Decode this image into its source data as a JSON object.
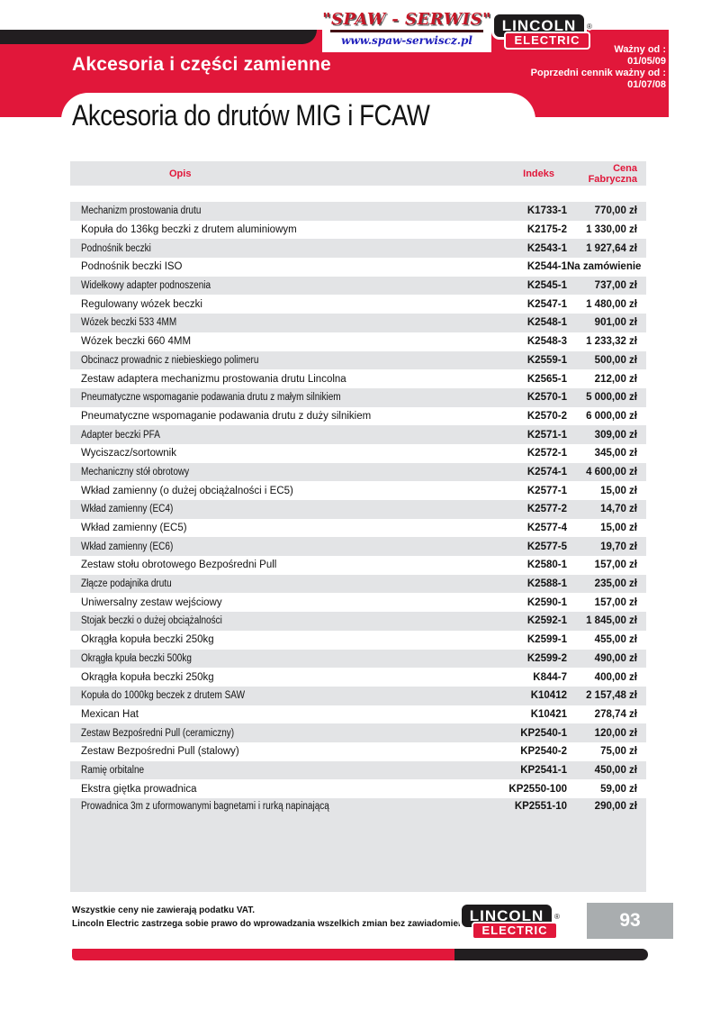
{
  "header": {
    "section_title": "Akcesoria i części zamienne",
    "validity": {
      "line1": "Ważny od :",
      "line2": "01/05/09",
      "line3": "Poprzedni cennik ważny od :",
      "line4": "01/07/08"
    }
  },
  "logos": {
    "spaw": {
      "title": "\"SPAW - SERWIS\"",
      "url": "www.spaw-serwiscz.pl"
    },
    "lincoln": {
      "line1": "LINCOLN",
      "line2": "ELECTRIC",
      "registered": "®"
    }
  },
  "page_title": "Akcesoria do drutów MIG i FCAW",
  "table": {
    "columns": {
      "desc": "Opis",
      "index": "Indeks",
      "price": "Cena Fabryczna"
    },
    "rows": [
      {
        "desc": "Mechanizm prostowania drutu",
        "index": "K1733-1",
        "price": "770,00 zł"
      },
      {
        "desc": "Kopuła do 136kg beczki z drutem aluminiowym",
        "index": "K2175-2",
        "price": "1 330,00 zł"
      },
      {
        "desc": "Podnośnik beczki",
        "index": "K2543-1",
        "price": "1 927,64 zł"
      },
      {
        "desc": "Podnośnik beczki ISO",
        "index": "K2544-1",
        "price": "Na zamówienie"
      },
      {
        "desc": "Widełkowy adapter podnoszenia",
        "index": "K2545-1",
        "price": "737,00 zł"
      },
      {
        "desc": "Regulowany wózek beczki",
        "index": "K2547-1",
        "price": "1 480,00 zł"
      },
      {
        "desc": "Wózek beczki 533 4MM",
        "index": "K2548-1",
        "price": "901,00 zł"
      },
      {
        "desc": "Wózek beczki 660 4MM",
        "index": "K2548-3",
        "price": "1 233,32 zł"
      },
      {
        "desc": "Obcinacz prowadnic z niebieskiego polimeru",
        "index": "K2559-1",
        "price": "500,00 zł"
      },
      {
        "desc": "Zestaw adaptera mechanizmu prostowania drutu Lincolna",
        "index": "K2565-1",
        "price": "212,00 zł"
      },
      {
        "desc": "Pneumatyczne wspomaganie podawania drutu z małym silnikiem",
        "index": "K2570-1",
        "price": "5 000,00 zł"
      },
      {
        "desc": "Pneumatyczne wspomaganie podawania drutu z duży silnikiem",
        "index": "K2570-2",
        "price": "6 000,00 zł"
      },
      {
        "desc": "Adapter beczki PFA",
        "index": "K2571-1",
        "price": "309,00 zł"
      },
      {
        "desc": "Wyciszacz/sortownik",
        "index": "K2572-1",
        "price": "345,00 zł"
      },
      {
        "desc": "Mechaniczny stół obrotowy",
        "index": "K2574-1",
        "price": "4 600,00 zł"
      },
      {
        "desc": "Wkład zamienny (o dużej obciążalności i EC5)",
        "index": "K2577-1",
        "price": "15,00 zł"
      },
      {
        "desc": "Wkład zamienny (EC4)",
        "index": "K2577-2",
        "price": "14,70 zł"
      },
      {
        "desc": "Wkład zamienny (EC5)",
        "index": "K2577-4",
        "price": "15,00 zł"
      },
      {
        "desc": "Wkład zamienny (EC6)",
        "index": "K2577-5",
        "price": "19,70 zł"
      },
      {
        "desc": "Zestaw stołu obrotowego Bezpośredni Pull",
        "index": "K2580-1",
        "price": "157,00 zł"
      },
      {
        "desc": "Złącze podajnika drutu",
        "index": "K2588-1",
        "price": "235,00 zł"
      },
      {
        "desc": "Uniwersalny zestaw wejściowy",
        "index": "K2590-1",
        "price": "157,00 zł"
      },
      {
        "desc": "Stojak beczki o dużej obciążalności",
        "index": "K2592-1",
        "price": "1 845,00 zł"
      },
      {
        "desc": "Okrągła kopuła beczki 250kg",
        "index": "K2599-1",
        "price": "455,00 zł"
      },
      {
        "desc": "Okrągła kpuła beczki 500kg",
        "index": "K2599-2",
        "price": "490,00 zł"
      },
      {
        "desc": "Okrągła kopuła beczki 250kg",
        "index": "K844-7",
        "price": "400,00 zł"
      },
      {
        "desc": "Kopuła do 1000kg beczek z drutem SAW",
        "index": "K10412",
        "price": "2 157,48 zł"
      },
      {
        "desc": "Mexican Hat",
        "index": "K10421",
        "price": "278,74 zł"
      },
      {
        "desc": "Zestaw Bezpośredni Pull (ceramiczny)",
        "index": "KP2540-1",
        "price": "120,00 zł"
      },
      {
        "desc": "Zestaw Bezpośredni Pull (stalowy)",
        "index": "KP2540-2",
        "price": "75,00 zł"
      },
      {
        "desc": "Ramię orbitalne",
        "index": "KP2541-1",
        "price": "450,00 zł"
      },
      {
        "desc": "Ekstra giętka prowadnica",
        "index": "KP2550-100",
        "price": "59,00 zł"
      },
      {
        "desc": "Prowadnica 3m z uformowanymi bagnetami i rurką napinającą",
        "index": "KP2551-10",
        "price": "290,00 zł"
      }
    ]
  },
  "footer": {
    "note1": "Wszystkie ceny nie zawierają podatku VAT.",
    "note2": "Lincoln Electric zastrzega sobie prawo do wprowadzania wszelkich zmian bez zawiadomienia.",
    "page_number": "93"
  },
  "colors": {
    "accent_red": "#e1173a",
    "bar_black": "#221e20",
    "row_gray": "#e3e4e6",
    "pagebox_gray": "#a9adaf",
    "url_blue": "#2121bd"
  }
}
